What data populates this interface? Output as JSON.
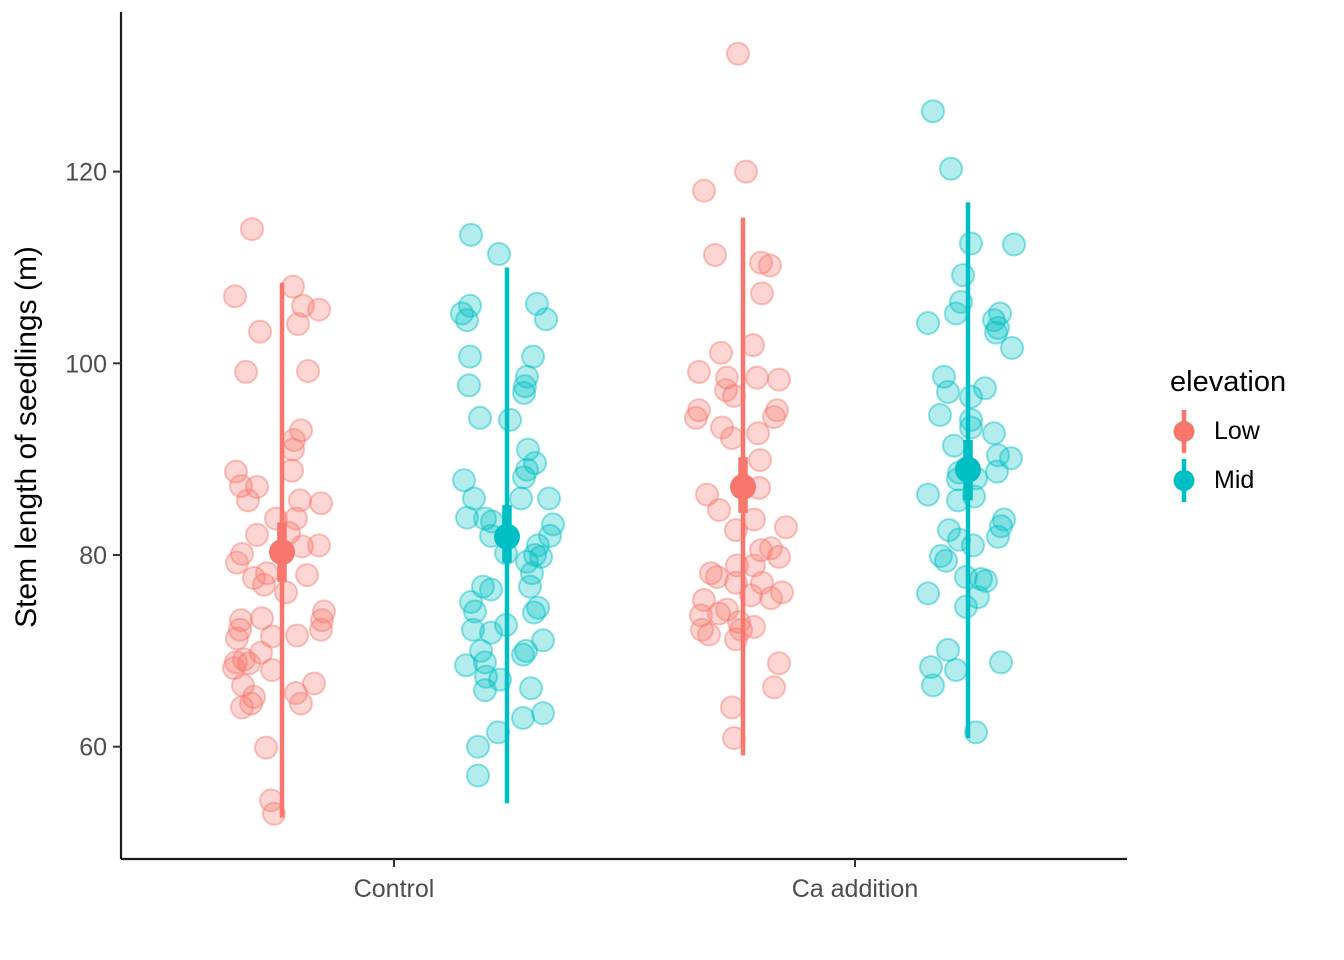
{
  "style": {
    "background": "#FFFFFF",
    "axis_text_color": "#4D4D4D",
    "axis_line_color": "#1A1A1A",
    "point_alpha": 0.3
  },
  "chart_data": {
    "type": "scatter",
    "subtype": "jittered points with dodged mean pointrange summaries",
    "title": "",
    "xlabel": "",
    "ylabel": "Stem length of seedlings (m)",
    "x_categories": [
      "Control",
      "Ca addition"
    ],
    "y_ticks": [
      60,
      80,
      100,
      120
    ],
    "ylim": [
      48,
      136
    ],
    "grid": "off",
    "legend": {
      "title": "elevation",
      "position": "right",
      "entries": [
        {
          "label": "Low",
          "color": "#F8766D"
        },
        {
          "label": "Mid",
          "color": "#00BFC4"
        }
      ]
    },
    "series": [
      {
        "name": "Low",
        "color": "#F8766D",
        "groups": [
          {
            "category": "Control",
            "summary": {
              "mean": 80.3,
              "core_low": 77.2,
              "core_high": 83.4,
              "min": 52.6,
              "max": 108.4
            },
            "points": [
              [
                -30,
                114
              ],
              [
                -47,
                107
              ],
              [
                11,
                108
              ],
              [
                21,
                106
              ],
              [
                37,
                105.6
              ],
              [
                -22,
                103.3
              ],
              [
                16,
                104.1
              ],
              [
                -36,
                99.1
              ],
              [
                26,
                99.2
              ],
              [
                19,
                93
              ],
              [
                12,
                92
              ],
              [
                11,
                91
              ],
              [
                10,
                88.8
              ],
              [
                -46,
                88.7
              ],
              [
                -41,
                87.2
              ],
              [
                -25,
                87.1
              ],
              [
                -34,
                85.7
              ],
              [
                18,
                85.7
              ],
              [
                39,
                85.4
              ],
              [
                -6,
                83.8
              ],
              [
                14,
                83.8
              ],
              [
                -25,
                82.1
              ],
              [
                7,
                82.3
              ],
              [
                -40,
                80.1
              ],
              [
                20,
                80.9
              ],
              [
                37,
                81
              ],
              [
                -45,
                79.2
              ],
              [
                -28,
                77.6
              ],
              [
                -15,
                78.1
              ],
              [
                -18,
                76.9
              ],
              [
                25,
                77.9
              ],
              [
                4,
                76.1
              ],
              [
                42,
                74.1
              ],
              [
                40,
                73.2
              ],
              [
                39,
                72.2
              ],
              [
                -41,
                73.2
              ],
              [
                -42,
                72.2
              ],
              [
                -20,
                73.4
              ],
              [
                -45,
                71.3
              ],
              [
                -10,
                71.5
              ],
              [
                15,
                71.6
              ],
              [
                -21,
                69.8
              ],
              [
                -38,
                69.1
              ],
              [
                -46,
                68.8
              ],
              [
                -48,
                68.2
              ],
              [
                -33,
                68.7
              ],
              [
                -10,
                68
              ],
              [
                -39,
                66.4
              ],
              [
                32,
                66.6
              ],
              [
                -28,
                65.2
              ],
              [
                14,
                65.6
              ],
              [
                -31,
                64.5
              ],
              [
                -40,
                64.1
              ],
              [
                19,
                64.5
              ],
              [
                -16,
                59.9
              ],
              [
                -11,
                54.4
              ],
              [
                -8,
                53
              ]
            ]
          },
          {
            "category": "Ca addition",
            "summary": {
              "mean": 87.1,
              "core_low": 84.4,
              "core_high": 90.2,
              "min": 59.1,
              "max": 115.2
            },
            "points": [
              [
                -5,
                132.3
              ],
              [
                3,
                120
              ],
              [
                -39,
                118
              ],
              [
                -28,
                111.3
              ],
              [
                18,
                110.5
              ],
              [
                27,
                110.2
              ],
              [
                19,
                107.3
              ],
              [
                10,
                101.9
              ],
              [
                -22,
                101.1
              ],
              [
                -44,
                99.1
              ],
              [
                -16,
                98.5
              ],
              [
                14,
                98.5
              ],
              [
                36,
                98.3
              ],
              [
                -17,
                97.2
              ],
              [
                -9,
                96.6
              ],
              [
                -44,
                95.1
              ],
              [
                34,
                95.1
              ],
              [
                -47,
                94.3
              ],
              [
                -21,
                93.3
              ],
              [
                -11,
                92.2
              ],
              [
                15,
                92.7
              ],
              [
                31,
                94.4
              ],
              [
                17,
                89.9
              ],
              [
                16,
                87
              ],
              [
                -36,
                86.3
              ],
              [
                -24,
                84.7
              ],
              [
                11,
                83.7
              ],
              [
                43,
                82.9
              ],
              [
                -7,
                82.6
              ],
              [
                18,
                80.5
              ],
              [
                28,
                80.7
              ],
              [
                36,
                79.8
              ],
              [
                11,
                78.9
              ],
              [
                -6,
                78.9
              ],
              [
                -32,
                78.1
              ],
              [
                -26,
                77.7
              ],
              [
                -7,
                77.1
              ],
              [
                19,
                77.1
              ],
              [
                8,
                75.8
              ],
              [
                28,
                75.5
              ],
              [
                39,
                76.1
              ],
              [
                -39,
                75.3
              ],
              [
                -42,
                73.7
              ],
              [
                -24,
                73.9
              ],
              [
                -16,
                74.3
              ],
              [
                -4,
                73
              ],
              [
                -2,
                72.2
              ],
              [
                11,
                72.5
              ],
              [
                -41,
                72.2
              ],
              [
                -34,
                71.7
              ],
              [
                -7,
                71.2
              ],
              [
                36,
                68.7
              ],
              [
                31,
                66.2
              ],
              [
                -11,
                64.1
              ],
              [
                -9,
                60.9
              ]
            ]
          }
        ]
      },
      {
        "name": "Mid",
        "color": "#00BFC4",
        "groups": [
          {
            "category": "Control",
            "summary": {
              "mean": 81.9,
              "core_low": 79.2,
              "core_high": 85.2,
              "min": 54.1,
              "max": 110.0
            },
            "points": [
              [
                -36,
                113.4
              ],
              [
                -8,
                111.4
              ],
              [
                -37,
                106
              ],
              [
                -45,
                105.2
              ],
              [
                -40,
                104.5
              ],
              [
                30,
                106.2
              ],
              [
                39,
                104.6
              ],
              [
                -37,
                100.7
              ],
              [
                26,
                100.7
              ],
              [
                -38,
                97.7
              ],
              [
                20,
                98.6
              ],
              [
                18,
                97.6
              ],
              [
                17,
                96.9
              ],
              [
                -27,
                94.3
              ],
              [
                3,
                94.1
              ],
              [
                21,
                91
              ],
              [
                28,
                89.6
              ],
              [
                20,
                88.9
              ],
              [
                17,
                88.1
              ],
              [
                -43,
                87.8
              ],
              [
                -33,
                85.9
              ],
              [
                14,
                85.9
              ],
              [
                42,
                85.9
              ],
              [
                -40,
                83.9
              ],
              [
                -22,
                83.8
              ],
              [
                -15,
                83.5
              ],
              [
                46,
                83.2
              ],
              [
                -16,
                82
              ],
              [
                31,
                81
              ],
              [
                43,
                82
              ],
              [
                28,
                80
              ],
              [
                -1,
                80.2
              ],
              [
                20,
                79.3
              ],
              [
                34,
                79.8
              ],
              [
                25,
                78.1
              ],
              [
                23,
                76.7
              ],
              [
                -16,
                76.4
              ],
              [
                -24,
                76.7
              ],
              [
                -36,
                75.1
              ],
              [
                -32,
                74.1
              ],
              [
                -34,
                72.2
              ],
              [
                -16,
                71.9
              ],
              [
                -1,
                72.7
              ],
              [
                31,
                74.5
              ],
              [
                27,
                74
              ],
              [
                36,
                71.1
              ],
              [
                19,
                70
              ],
              [
                16,
                69.6
              ],
              [
                -26,
                70
              ],
              [
                -22,
                68.8
              ],
              [
                -41,
                68.5
              ],
              [
                -21,
                67.3
              ],
              [
                -7,
                67
              ],
              [
                -22,
                65.9
              ],
              [
                24,
                66.1
              ],
              [
                16,
                63
              ],
              [
                36,
                63.5
              ],
              [
                -9,
                61.5
              ],
              [
                -29,
                60
              ],
              [
                -29,
                57
              ]
            ]
          },
          {
            "category": "Ca addition",
            "summary": {
              "mean": 88.9,
              "core_low": 85.7,
              "core_high": 92.0,
              "min": 60.9,
              "max": 116.8
            },
            "points": [
              [
                -35,
                126.3
              ],
              [
                -17,
                120.3
              ],
              [
                3,
                112.5
              ],
              [
                46,
                112.4
              ],
              [
                -5,
                109.2
              ],
              [
                -7,
                106.4
              ],
              [
                -12,
                105.2
              ],
              [
                32,
                105.2
              ],
              [
                -40,
                104.2
              ],
              [
                26,
                104.5
              ],
              [
                30,
                103.7
              ],
              [
                28,
                103.2
              ],
              [
                44,
                101.6
              ],
              [
                -24,
                98.6
              ],
              [
                -20,
                97
              ],
              [
                17,
                97.4
              ],
              [
                3,
                96.5
              ],
              [
                -28,
                94.6
              ],
              [
                3,
                94.1
              ],
              [
                3,
                93.3
              ],
              [
                26,
                92.7
              ],
              [
                -14,
                91.4
              ],
              [
                30,
                90.4
              ],
              [
                43,
                90.1
              ],
              [
                -1,
                89.1
              ],
              [
                -9,
                88.6
              ],
              [
                -10,
                87.9
              ],
              [
                8,
                88
              ],
              [
                29,
                88.7
              ],
              [
                -40,
                86.3
              ],
              [
                -10,
                85.7
              ],
              [
                6,
                86.1
              ],
              [
                -19,
                82.6
              ],
              [
                36,
                83.7
              ],
              [
                33,
                83
              ],
              [
                30,
                81.9
              ],
              [
                -9,
                81.6
              ],
              [
                5,
                81
              ],
              [
                -22,
                79.4
              ],
              [
                -27,
                79.9
              ],
              [
                -2,
                77.7
              ],
              [
                13,
                77.5
              ],
              [
                18,
                77.3
              ],
              [
                -40,
                76
              ],
              [
                10,
                75.6
              ],
              [
                -2,
                74.6
              ],
              [
                -20,
                70.1
              ],
              [
                -37,
                68.3
              ],
              [
                -12,
                68
              ],
              [
                33,
                68.8
              ],
              [
                -35,
                66.4
              ],
              [
                8,
                61.5
              ]
            ]
          }
        ]
      }
    ]
  }
}
